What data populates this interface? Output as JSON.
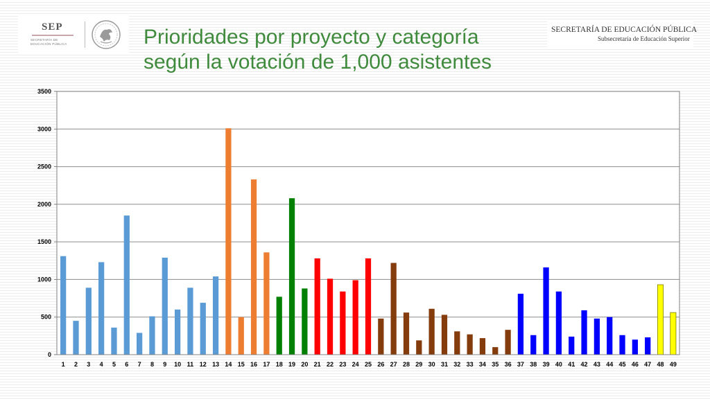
{
  "header": {
    "logo_left": {
      "sep_text": "SEP",
      "sub_line1": "SECRETARÍA DE",
      "sub_line2": "EDUCACIÓN PÚBLICA",
      "seal_icon": "mexican-eagle-seal-icon"
    },
    "title_line1": "Prioridades por proyecto y categoría",
    "title_line2": "según la votación de 1,000 asistentes",
    "logo_right": {
      "line1": "SECRETARÍA DE EDUCACIÓN PÚBLICA",
      "line2": "Subsecretaría de Educación Superior"
    }
  },
  "colors": {
    "title": "#3f8a3c",
    "light_blue": "#5b9bd5",
    "orange": "#ed7d31",
    "green": "#008000",
    "red": "#ff0000",
    "brown": "#843c0c",
    "blue": "#0000ff",
    "yellow": "#ffff00"
  },
  "chart_data": {
    "type": "bar",
    "title": "",
    "xlabel": "",
    "ylabel": "",
    "ylim": [
      0,
      3500
    ],
    "yticks": [
      0,
      500,
      1000,
      1500,
      2000,
      2500,
      3000,
      3500
    ],
    "grid": true,
    "legend": "none",
    "categories": [
      "1",
      "2",
      "3",
      "4",
      "5",
      "6",
      "7",
      "8",
      "9",
      "10",
      "11",
      "12",
      "13",
      "14",
      "15",
      "16",
      "17",
      "18",
      "19",
      "20",
      "21",
      "22",
      "23",
      "24",
      "25",
      "26",
      "27",
      "28",
      "29",
      "30",
      "31",
      "32",
      "33",
      "34",
      "35",
      "36",
      "37",
      "38",
      "39",
      "40",
      "41",
      "42",
      "43",
      "44",
      "45",
      "46",
      "47",
      "48",
      "49"
    ],
    "values": [
      1310,
      450,
      890,
      1230,
      360,
      1850,
      290,
      510,
      1290,
      600,
      890,
      690,
      1040,
      3010,
      500,
      2330,
      1360,
      770,
      2080,
      880,
      1280,
      1010,
      840,
      990,
      1280,
      480,
      1220,
      560,
      190,
      610,
      530,
      310,
      270,
      220,
      100,
      330,
      810,
      260,
      1160,
      840,
      240,
      590,
      480,
      500,
      260,
      200,
      230,
      930,
      560
    ],
    "bar_colors": [
      "#5b9bd5",
      "#5b9bd5",
      "#5b9bd5",
      "#5b9bd5",
      "#5b9bd5",
      "#5b9bd5",
      "#5b9bd5",
      "#5b9bd5",
      "#5b9bd5",
      "#5b9bd5",
      "#5b9bd5",
      "#5b9bd5",
      "#5b9bd5",
      "#ed7d31",
      "#ed7d31",
      "#ed7d31",
      "#ed7d31",
      "#008000",
      "#008000",
      "#008000",
      "#ff0000",
      "#ff0000",
      "#ff0000",
      "#ff0000",
      "#ff0000",
      "#843c0c",
      "#843c0c",
      "#843c0c",
      "#843c0c",
      "#843c0c",
      "#843c0c",
      "#843c0c",
      "#843c0c",
      "#843c0c",
      "#843c0c",
      "#843c0c",
      "#0000ff",
      "#0000ff",
      "#0000ff",
      "#0000ff",
      "#0000ff",
      "#0000ff",
      "#0000ff",
      "#0000ff",
      "#0000ff",
      "#0000ff",
      "#0000ff",
      "#ffff00",
      "#ffff00"
    ]
  }
}
